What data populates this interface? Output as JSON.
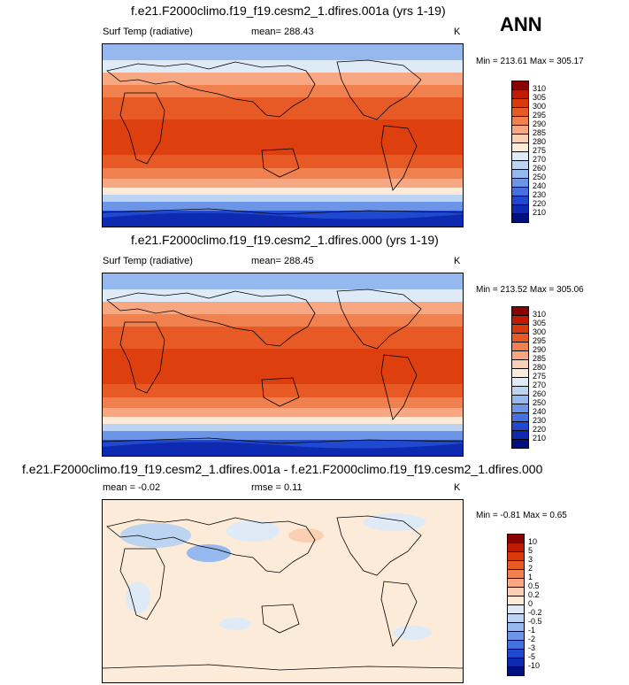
{
  "season": "ANN",
  "panels": [
    {
      "title": "f.e21.F2000climo.f19_f19.cesm2_1.dfires.001a (yrs 1-19)",
      "variable": "Surf Temp (radiative)",
      "mean": "mean= 288.43",
      "units": "K",
      "minmax": "Min = 213.61 Max = 305.17",
      "levels": [
        "310",
        "305",
        "300",
        "295",
        "290",
        "285",
        "280",
        "275",
        "270",
        "260",
        "250",
        "240",
        "230",
        "220",
        "210"
      ],
      "colors": [
        "#8b0000",
        "#c01a00",
        "#d9380a",
        "#e85a25",
        "#f0814e",
        "#f7a882",
        "#fbcfb4",
        "#fdebd9",
        "#dfeaf7",
        "#bcd4f2",
        "#95b8ee",
        "#6c95e7",
        "#4571e0",
        "#2049d2",
        "#0d2ab0",
        "#001080"
      ]
    },
    {
      "title": "f.e21.F2000climo.f19_f19.cesm2_1.dfires.000 (yrs 1-19)",
      "variable": "Surf Temp (radiative)",
      "mean": "mean= 288.45",
      "units": "K",
      "minmax": "Min = 213.52 Max = 305.06",
      "levels": [
        "310",
        "305",
        "300",
        "295",
        "290",
        "285",
        "280",
        "275",
        "270",
        "260",
        "250",
        "240",
        "230",
        "220",
        "210"
      ],
      "colors": [
        "#8b0000",
        "#c01a00",
        "#d9380a",
        "#e85a25",
        "#f0814e",
        "#f7a882",
        "#fbcfb4",
        "#fdebd9",
        "#dfeaf7",
        "#bcd4f2",
        "#95b8ee",
        "#6c95e7",
        "#4571e0",
        "#2049d2",
        "#0d2ab0",
        "#001080"
      ]
    },
    {
      "title": "f.e21.F2000climo.f19_f19.cesm2_1.dfires.001a - f.e21.F2000climo.f19_f19.cesm2_1.dfires.000",
      "mean": "mean = -0.02",
      "rmse": "rmse = 0.11",
      "units": "K",
      "minmax": "Min = -0.81 Max = 0.65",
      "levels": [
        "10",
        "5",
        "3",
        "2",
        "1",
        "0.5",
        "0.2",
        "0",
        "-0.2",
        "-0.5",
        "-1",
        "-2",
        "-3",
        "-5",
        "-10"
      ],
      "colors": [
        "#8b0000",
        "#c01a00",
        "#d9380a",
        "#e85a25",
        "#f0814e",
        "#f7a882",
        "#fbcfb4",
        "#fdebd9",
        "#dfeaf7",
        "#bcd4f2",
        "#95b8ee",
        "#6c95e7",
        "#4571e0",
        "#2049d2",
        "#0d2ab0",
        "#001080"
      ]
    }
  ]
}
